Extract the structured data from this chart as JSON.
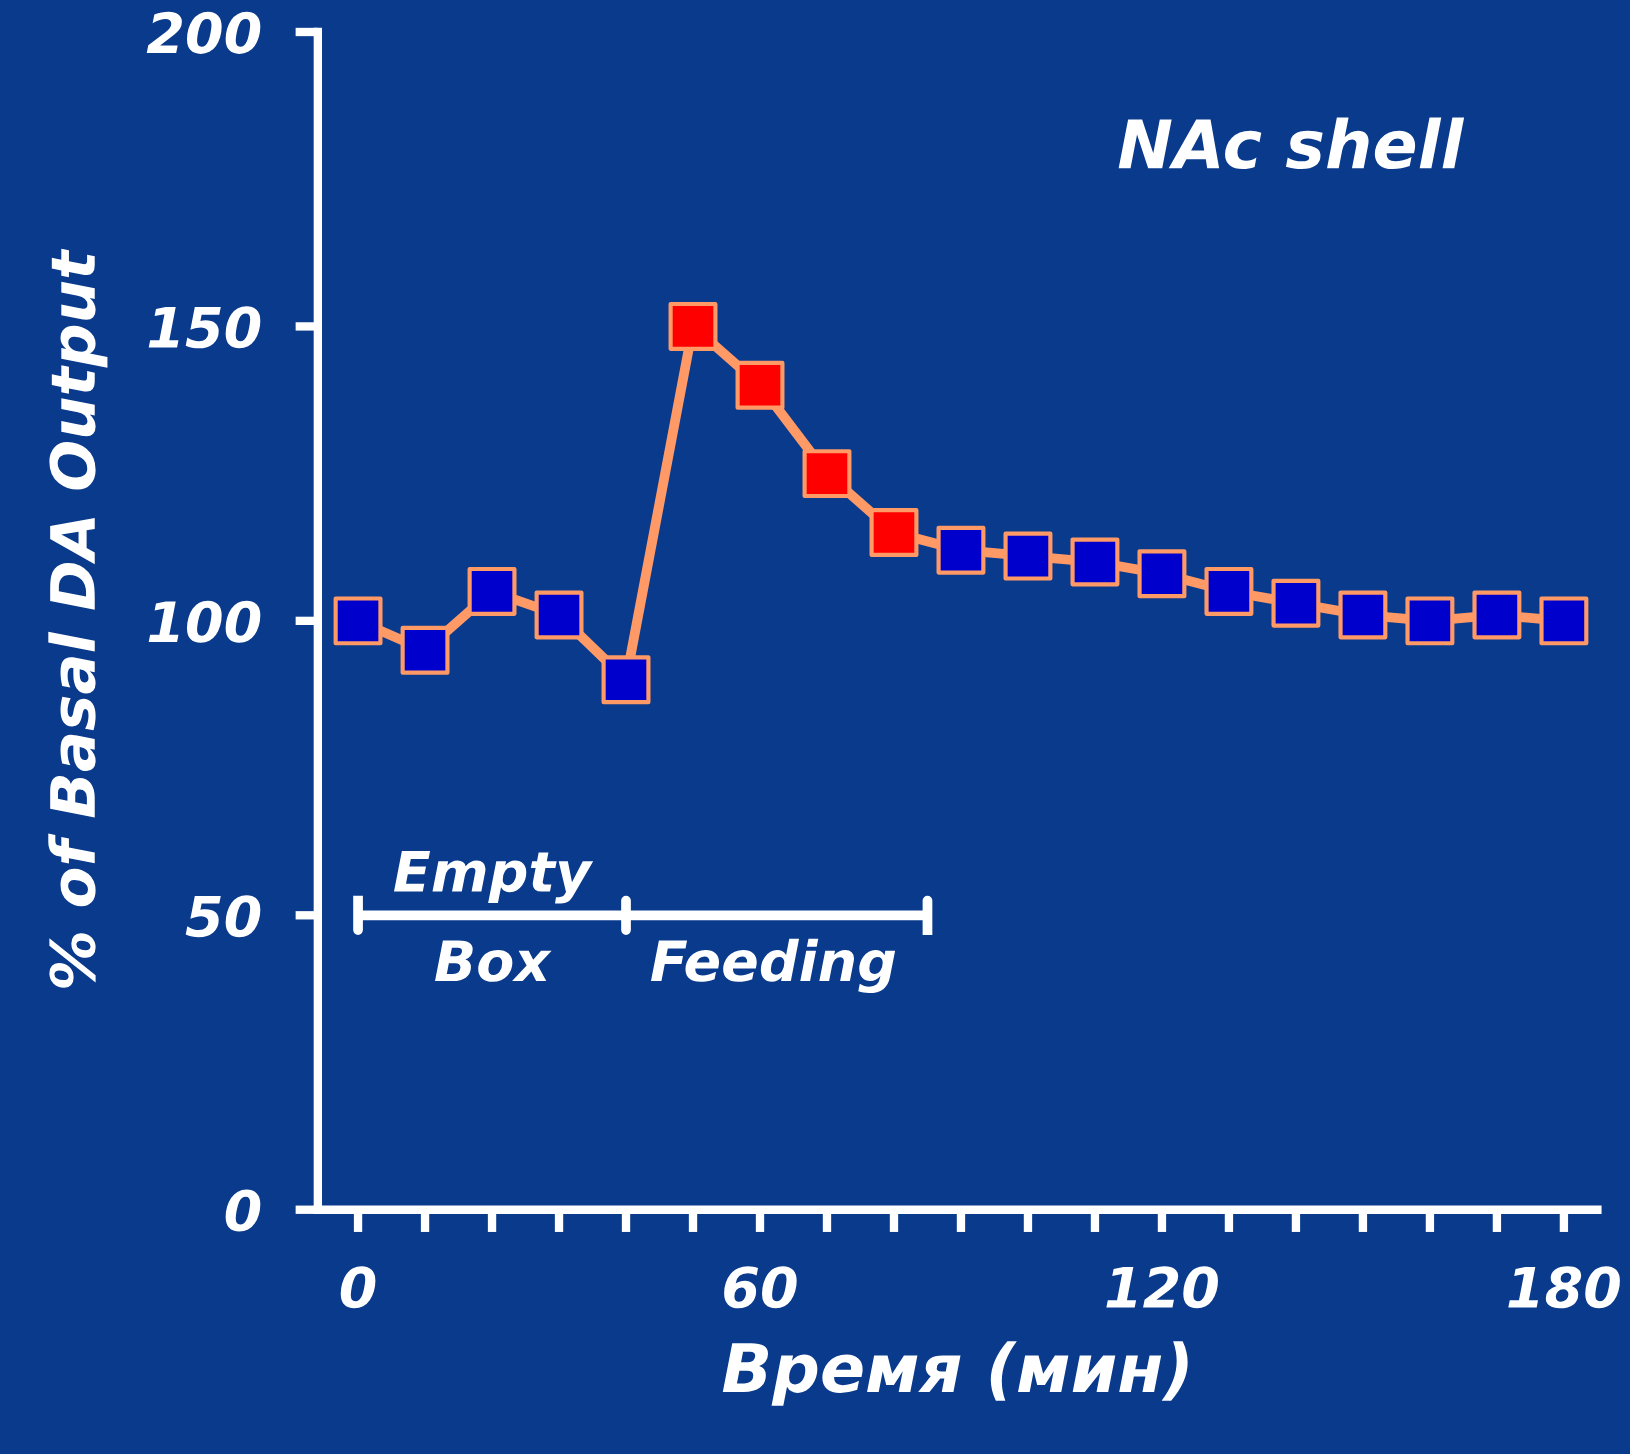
{
  "chart_data": {
    "type": "line",
    "xlabel": "Время (мин)",
    "ylabel": "% of Basal DA Output",
    "annotations": [
      "NAc shell",
      {
        "text": "Empty\nBox",
        "x": 20,
        "y": 50
      },
      {
        "text": "Feeding",
        "x": 62,
        "y": 50
      }
    ],
    "x": [
      0,
      10,
      20,
      30,
      40,
      50,
      60,
      70,
      80,
      90,
      100,
      110,
      120,
      130,
      140,
      150,
      160,
      170,
      180
    ],
    "series": [
      {
        "color": "#ff9966",
        "colors": [
          "#0000cc",
          "#0000cc",
          "#0000cc",
          "#0000cc",
          "#0000cc",
          "#ff0000",
          "#ff0000",
          "#ff0000",
          "#ff0000",
          "#0000cc",
          "#0000cc",
          "#0000cc",
          "#0000cc",
          "#0000cc",
          "#0000cc",
          "#0000cc",
          "#0000cc",
          "#0000cc",
          "#0000cc"
        ],
        "values": [
          100,
          95,
          105,
          101,
          90,
          150,
          140,
          125,
          115,
          112,
          111,
          110,
          108,
          105,
          103,
          101,
          100,
          101,
          100
        ]
      },
      {
        "type": "line",
        "marker": "none",
        "color": "#ffffff",
        "x": [
          0,
          0,
          0,
          40,
          40,
          40,
          40,
          85,
          85,
          85
        ],
        "values": [
          52.5,
          47.5,
          50,
          50,
          52.5,
          47.5,
          50,
          50,
          52.5,
          47.5
        ]
      }
    ],
    "marker": "square",
    "line_style": "solid",
    "grid": false,
    "legend": false,
    "xlim": [
      -6,
      185
    ],
    "ylim": [
      0,
      200
    ],
    "xticks": [
      0,
      {
        "value": 10,
        "label": null
      },
      {
        "value": 20,
        "label": null
      },
      {
        "value": 30,
        "label": null
      },
      {
        "value": 40,
        "label": null
      },
      {
        "value": 50,
        "label": null
      },
      60,
      {
        "value": 70,
        "label": null
      },
      {
        "value": 80,
        "label": null
      },
      {
        "value": 90,
        "label": null
      },
      {
        "value": 100,
        "label": null
      },
      {
        "value": 110,
        "label": null
      },
      120,
      {
        "value": 130,
        "label": null
      },
      {
        "value": 140,
        "label": null
      },
      {
        "value": 150,
        "label": null
      },
      {
        "value": 160,
        "label": null
      },
      {
        "value": 170,
        "label": null
      },
      180
    ],
    "yticks": [
      0,
      50,
      100,
      150,
      200
    ]
  }
}
